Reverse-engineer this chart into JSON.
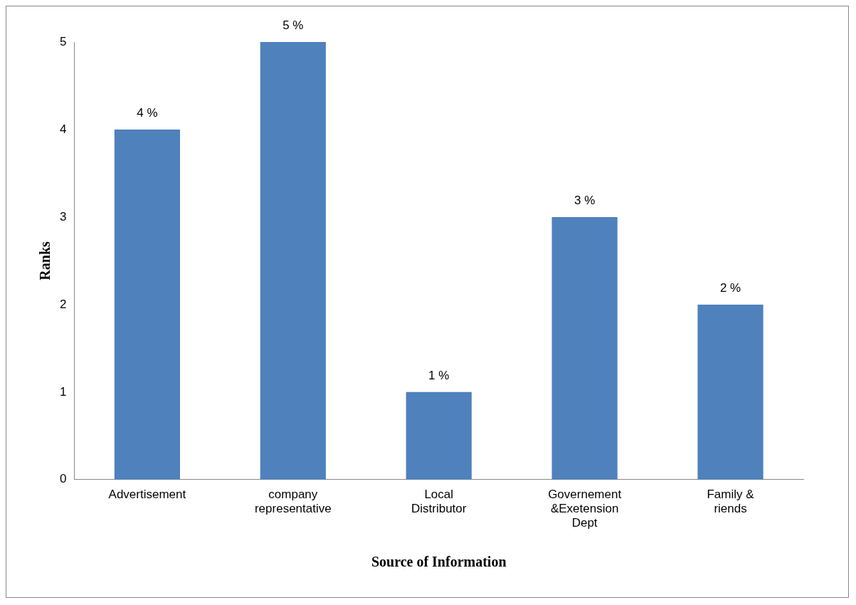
{
  "chart_data": {
    "type": "bar",
    "xlabel": "Source of Information",
    "ylabel": "Ranks",
    "categories": [
      "Advertisement",
      "company representative",
      "Local Distributor",
      "Governement &Exetension Dept",
      "Family & riends"
    ],
    "values": [
      4,
      5,
      1,
      3,
      2
    ],
    "color": "#4f81bd",
    "value_labels": [
      "4 %",
      "5 %",
      "1 %",
      "3 %",
      "2 %"
    ],
    "ylim": [
      0,
      5
    ],
    "yticks": [
      0,
      1,
      2,
      3,
      4,
      5
    ],
    "grid": false,
    "legend": false
  }
}
